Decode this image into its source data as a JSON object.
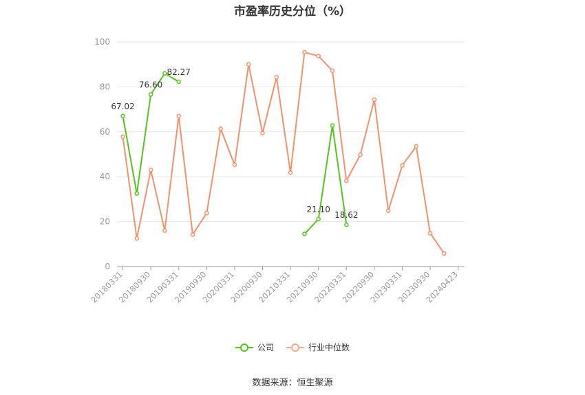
{
  "chart_data": {
    "type": "line",
    "title": "市盈率历史分位（%）",
    "x_tick_labels": [
      "20180331",
      "20180930",
      "20190331",
      "20190930",
      "20200331",
      "20200930",
      "20210331",
      "20210930",
      "20220331",
      "20220930",
      "20230331",
      "20230930",
      "20240423"
    ],
    "y_ticks": [
      0,
      20,
      40,
      60,
      80,
      100
    ],
    "ylim": [
      0,
      100
    ],
    "grid": true,
    "legend_position": "bottom-center",
    "series": [
      {
        "name": "公司",
        "color": "#52c41a",
        "points": [
          {
            "xi": 0,
            "y": 67.02,
            "label": "67.02"
          },
          {
            "xi": 1,
            "y": 32.5
          },
          {
            "xi": 2,
            "y": 76.6,
            "label": "76.60"
          },
          {
            "xi": 3,
            "y": 86.0
          },
          {
            "xi": 4,
            "y": 82.27,
            "label": "82.27"
          },
          {
            "xi": 13,
            "y": 14.5
          },
          {
            "xi": 14,
            "y": 21.1,
            "label": "21.10"
          },
          {
            "xi": 15,
            "y": 62.8
          },
          {
            "xi": 16,
            "y": 18.62,
            "label": "18.62"
          }
        ]
      },
      {
        "name": "行业中位数",
        "color": "#f4916b",
        "points": [
          {
            "xi": 0,
            "y": 57.8
          },
          {
            "xi": 1,
            "y": 12.5
          },
          {
            "xi": 2,
            "y": 43.0
          },
          {
            "xi": 3,
            "y": 16.0
          },
          {
            "xi": 4,
            "y": 67.0
          },
          {
            "xi": 5,
            "y": 14.2
          },
          {
            "xi": 6,
            "y": 23.8
          },
          {
            "xi": 7,
            "y": 61.3
          },
          {
            "xi": 8,
            "y": 45.3
          },
          {
            "xi": 9,
            "y": 90.0
          },
          {
            "xi": 10,
            "y": 59.4
          },
          {
            "xi": 11,
            "y": 84.3
          },
          {
            "xi": 12,
            "y": 41.8
          },
          {
            "xi": 13,
            "y": 95.4
          },
          {
            "xi": 14,
            "y": 93.7
          },
          {
            "xi": 15,
            "y": 87.2
          },
          {
            "xi": 16,
            "y": 38.2
          },
          {
            "xi": 17,
            "y": 49.8
          },
          {
            "xi": 18,
            "y": 74.3
          },
          {
            "xi": 19,
            "y": 24.8
          },
          {
            "xi": 20,
            "y": 45.0
          },
          {
            "xi": 21,
            "y": 53.5
          },
          {
            "xi": 22,
            "y": 14.8
          },
          {
            "xi": 23,
            "y": 5.8
          }
        ]
      }
    ]
  },
  "legend": {
    "company_label": "公司",
    "industry_label": "行业中位数"
  },
  "footer": {
    "source": "数据来源：恒生聚源"
  }
}
